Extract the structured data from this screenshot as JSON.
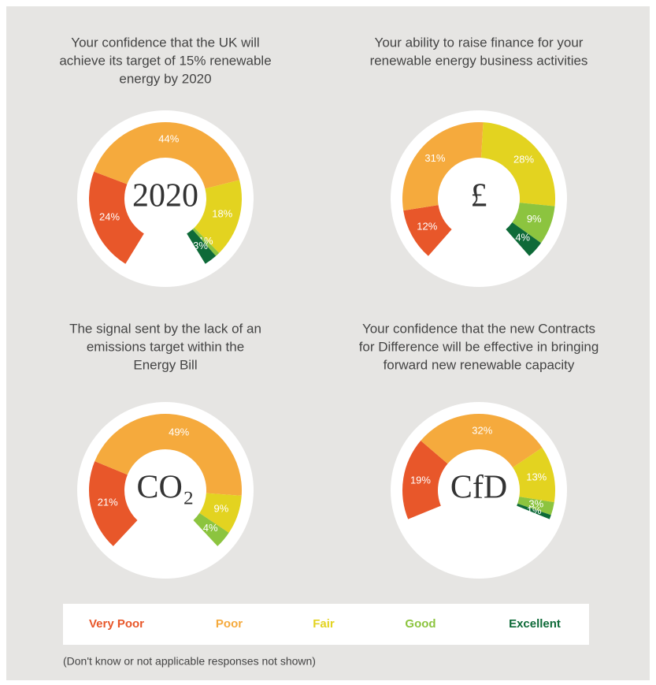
{
  "chart_data": [
    {
      "type": "gauge",
      "title": [
        "Your confidence that the UK will",
        "achieve its target of 15% renewable",
        "energy by 2020"
      ],
      "center_label": "2020",
      "values": [
        24,
        44,
        18,
        1,
        3
      ],
      "value_labels": [
        "24%",
        "44%",
        "18%",
        "1%",
        "3%"
      ]
    },
    {
      "type": "gauge",
      "title": [
        "Your ability to raise finance for your",
        "renewable energy business activities"
      ],
      "center_label": "£",
      "values": [
        12,
        31,
        28,
        9,
        4
      ],
      "value_labels": [
        "12%",
        "31%",
        "28%",
        "9%",
        "4%"
      ]
    },
    {
      "type": "gauge",
      "title": [
        "The signal sent by the lack of an",
        "emissions target within the",
        "Energy Bill"
      ],
      "center_label": "CO₂",
      "values": [
        21,
        49,
        9,
        4,
        null
      ],
      "value_labels": [
        "21%",
        "49%",
        "9%",
        "4%",
        null
      ]
    },
    {
      "type": "gauge",
      "title": [
        "Your confidence that the new Contracts",
        "for Difference will be effective in bringing",
        "forward new renewable capacity"
      ],
      "center_label": "CfD",
      "values": [
        19,
        32,
        13,
        3,
        1
      ],
      "value_labels": [
        "19%",
        "32%",
        "13%",
        "3%",
        "1%"
      ]
    }
  ],
  "legend": [
    {
      "name": "Very Poor",
      "color": "#e8572a"
    },
    {
      "name": "Poor",
      "color": "#f5aa3d"
    },
    {
      "name": "Fair",
      "color": "#e3d320"
    },
    {
      "name": "Good",
      "color": "#8cc43f"
    },
    {
      "name": "Excellent",
      "color": "#0e6a38"
    }
  ],
  "footnote": "(Don't know or not applicable responses not shown)"
}
